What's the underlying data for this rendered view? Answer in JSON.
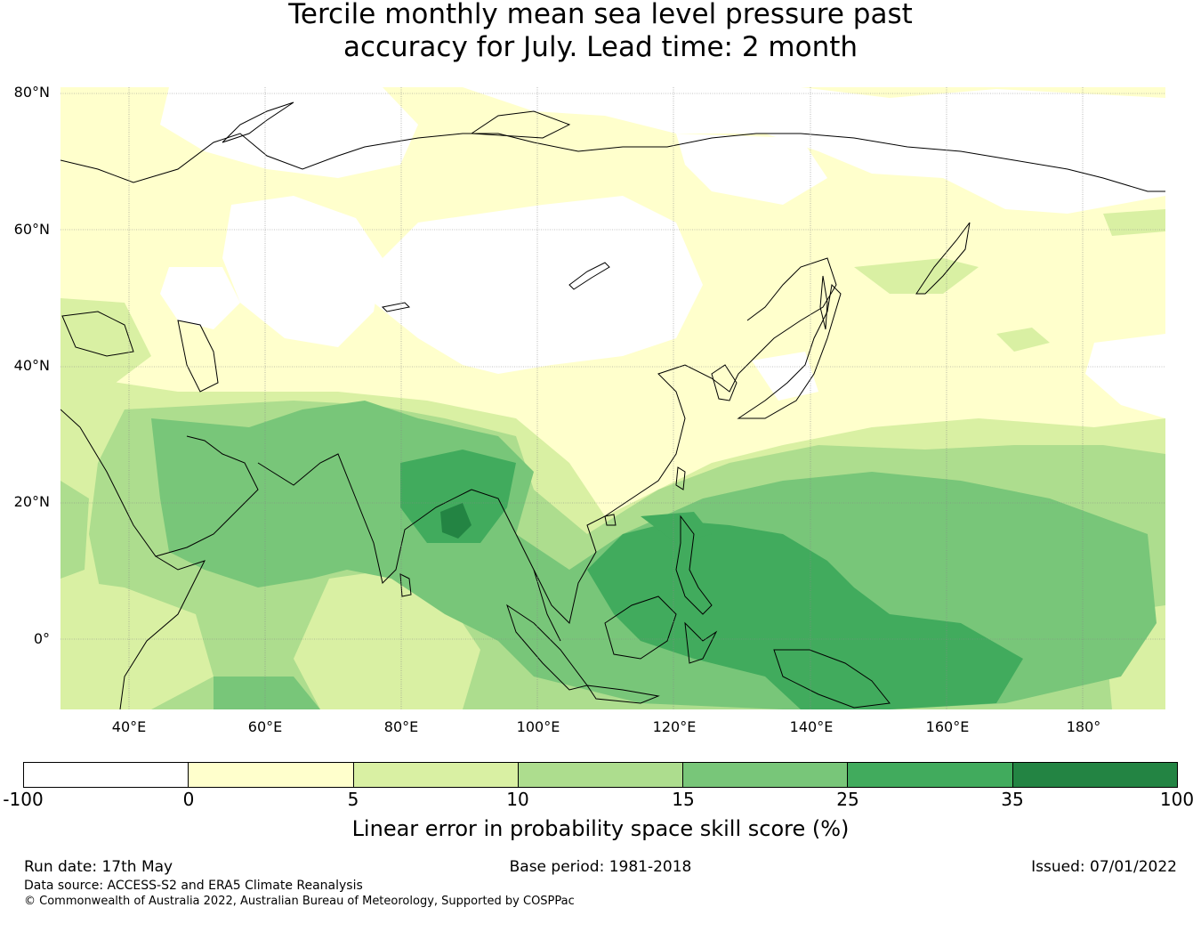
{
  "title": {
    "line1": "Tercile monthly mean sea level pressure past",
    "line2": "accuracy for July. Lead time: 2 month"
  },
  "map": {
    "lat_labels": [
      "80°N",
      "60°N",
      "40°N",
      "20°N",
      "0°"
    ],
    "lon_labels": [
      "40°E",
      "60°E",
      "80°E",
      "100°E",
      "120°E",
      "140°E",
      "160°E",
      "180°"
    ],
    "lat_range": [
      -10,
      80
    ],
    "lon_range": [
      30,
      192
    ],
    "gridlines": true,
    "colors": {
      "land_outline": "#000000",
      "gridline": "#888888"
    }
  },
  "colorbar": {
    "ticks": [
      "-100",
      "0",
      "5",
      "10",
      "15",
      "25",
      "35",
      "100"
    ],
    "colors": [
      "#ffffff",
      "#ffffcc",
      "#d9f0a3",
      "#addd8e",
      "#78c679",
      "#41ab5d",
      "#238443"
    ],
    "label": "Linear error in probability space skill score (%)"
  },
  "footer": {
    "run_date": "Run date: 17th May",
    "base_period": "Base period: 1981-2018",
    "issued": "Issued: 07/01/2022",
    "data_source": "Data source: ACCESS-S2 and ERA5 Climate Reanalysis",
    "copyright": "© Commonwealth of Australia 2022, Australian Bureau of Meteorology, Supported by COSPPac"
  }
}
